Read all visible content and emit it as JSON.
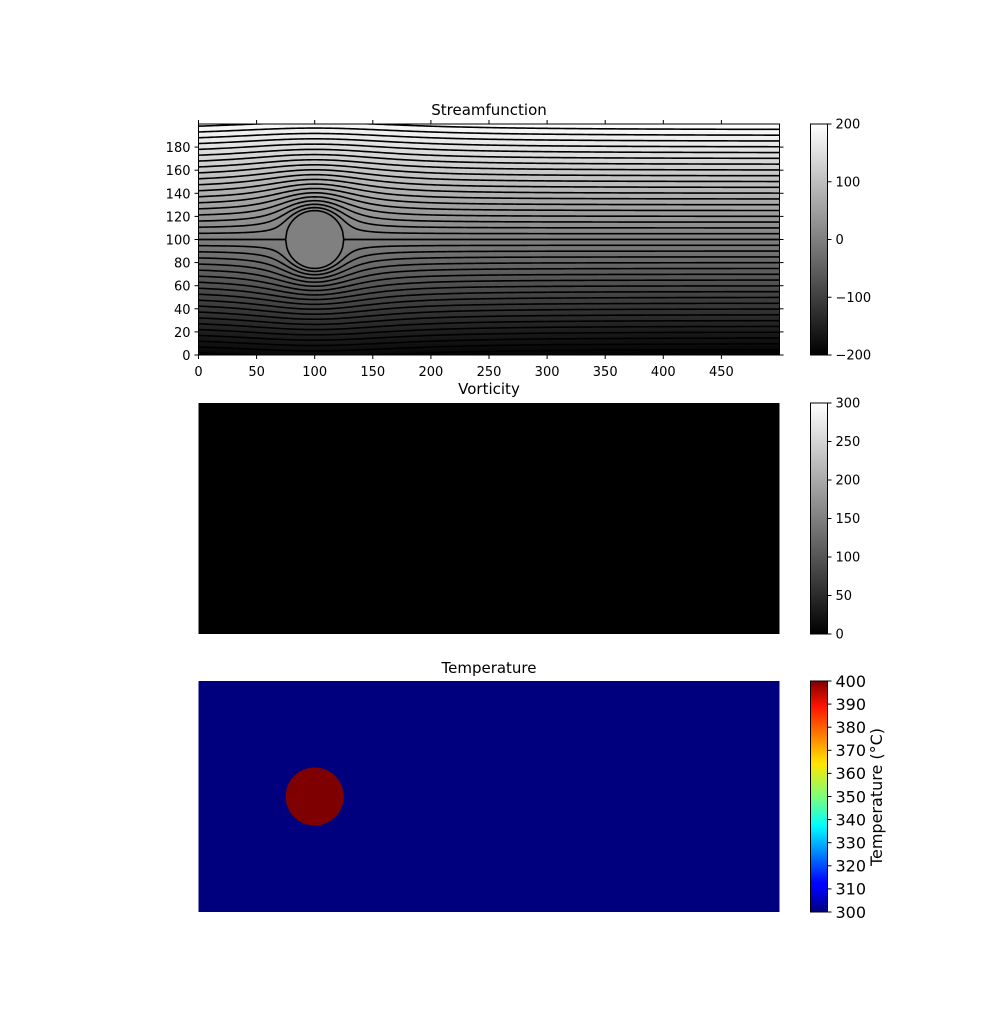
{
  "chart_data": [
    {
      "type": "heatmap",
      "title": "Streamfunction",
      "xlabel": "",
      "ylabel": "",
      "xlim": [
        0,
        500
      ],
      "ylim": [
        0,
        200
      ],
      "x_ticks": [
        0,
        50,
        100,
        150,
        200,
        250,
        300,
        350,
        400,
        450
      ],
      "y_ticks": [
        0,
        20,
        40,
        60,
        80,
        100,
        120,
        140,
        160,
        180
      ],
      "colormap": "gray",
      "colorbar": {
        "min": -200,
        "max": 200,
        "ticks": [
          200,
          100,
          0,
          -100,
          -200
        ],
        "tick_labels": [
          "200",
          "100",
          "0",
          "−100",
          "−200"
        ]
      },
      "contours": {
        "color": "#000000",
        "levels_min": -200,
        "levels_max": 200,
        "level_step": 10
      },
      "obstacle": {
        "center_x": 100,
        "center_y": 100,
        "radius": 25
      },
      "uniform_flow_speed": 2,
      "reference_y": 100
    },
    {
      "type": "heatmap",
      "title": "Vorticity",
      "xlabel": "",
      "ylabel": "",
      "xlim": [
        0,
        500
      ],
      "ylim": [
        0,
        200
      ],
      "colormap": "gray",
      "field_value": 0,
      "colorbar": {
        "min": 0,
        "max": 300,
        "ticks": [
          300,
          250,
          200,
          150,
          100,
          50,
          0
        ],
        "tick_labels": [
          "300",
          "250",
          "200",
          "150",
          "100",
          "50",
          "0"
        ]
      }
    },
    {
      "type": "heatmap",
      "title": "Temperature",
      "xlabel": "",
      "ylabel": "",
      "xlim": [
        0,
        500
      ],
      "ylim": [
        0,
        200
      ],
      "colormap": "jet",
      "background_value": 300,
      "hot_spot": {
        "center_x": 100,
        "center_y": 100,
        "radius": 25,
        "value": 400
      },
      "colorbar": {
        "min": 300,
        "max": 400,
        "label": "Temperature (°C)",
        "ticks": [
          400,
          390,
          380,
          370,
          360,
          350,
          340,
          330,
          320,
          310,
          300
        ],
        "tick_labels": [
          "400",
          "390",
          "380",
          "370",
          "360",
          "350",
          "340",
          "330",
          "320",
          "310",
          "300"
        ]
      }
    }
  ]
}
